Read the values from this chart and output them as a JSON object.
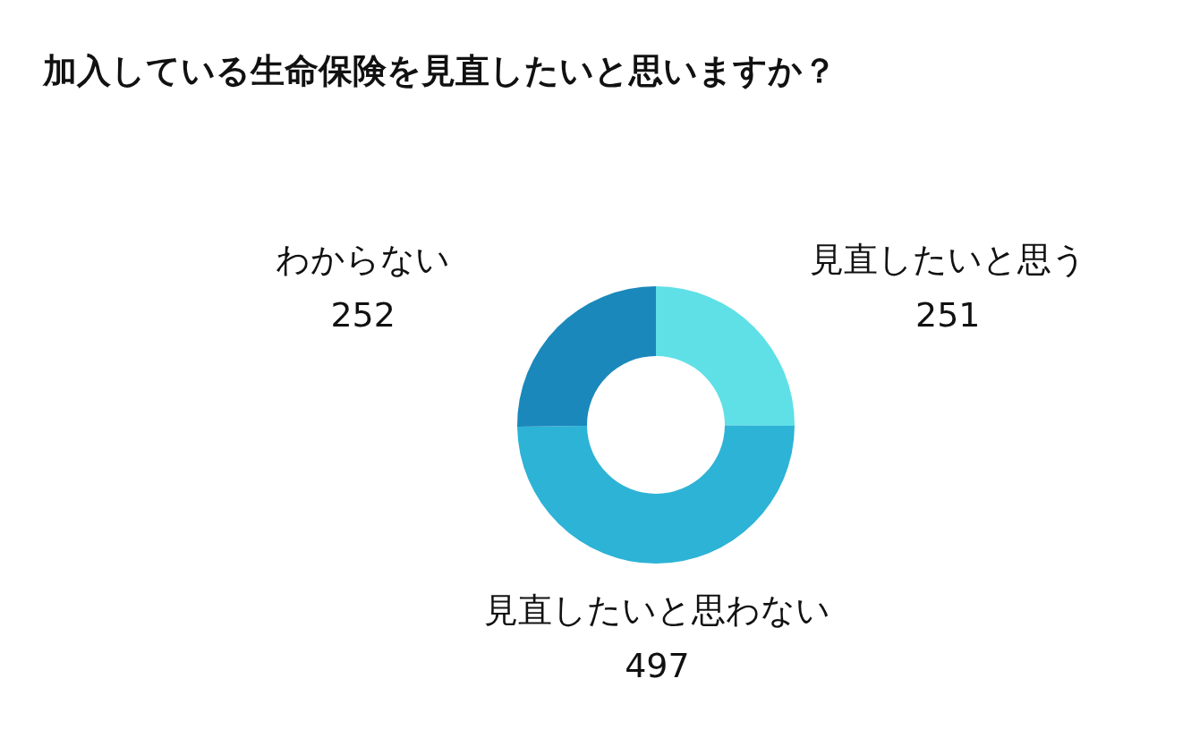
{
  "chart_data": {
    "type": "donut",
    "title": "加入している生命保険を見直したいと思いますか？",
    "categories": [
      "見直したいと思う",
      "見直したいと思わない",
      "わからない"
    ],
    "values": [
      251,
      497,
      252
    ],
    "colors": [
      "#5ee0e6",
      "#2db3d6",
      "#1a88bb"
    ],
    "data_labels": true
  }
}
